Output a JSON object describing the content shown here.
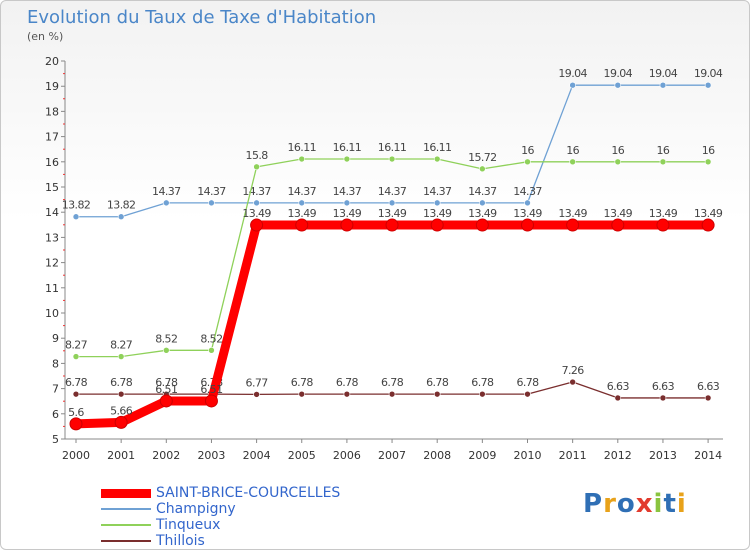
{
  "header": {
    "title": "Evolution du Taux de Taxe d'Habitation",
    "subtitle": "(en %)"
  },
  "logo": {
    "text": "Proxiti"
  },
  "chart_data": {
    "type": "line",
    "title": "Evolution du Taux de Taxe d'Habitation",
    "ylabel": "(en %)",
    "xlabel": "",
    "ylim": [
      5,
      20
    ],
    "yticks": [
      5,
      6,
      7,
      8,
      9,
      10,
      11,
      12,
      13,
      14,
      15,
      16,
      17,
      18,
      19,
      20
    ],
    "grid": false,
    "legend_position": "bottom-left",
    "categories": [
      "2000",
      "2001",
      "2002",
      "2003",
      "2004",
      "2005",
      "2006",
      "2007",
      "2008",
      "2009",
      "2010",
      "2011",
      "2012",
      "2013",
      "2014"
    ],
    "series": [
      {
        "name": "SAINT-BRICE-COURCELLES",
        "color": "#ff0000",
        "values": [
          5.6,
          5.66,
          6.51,
          6.51,
          13.49,
          13.49,
          13.49,
          13.49,
          13.49,
          13.49,
          13.49,
          13.49,
          13.49,
          13.49,
          13.49
        ],
        "labels": [
          "5.6",
          "5.66",
          "6.51",
          "6.51",
          "13.49",
          "13.49",
          "13.49",
          "13.49",
          "13.49",
          "13.49",
          "13.49",
          "13.49",
          "13.49",
          "13.49",
          "13.49"
        ]
      },
      {
        "name": "Champigny",
        "color": "#6fa1d4",
        "values": [
          13.82,
          13.82,
          14.37,
          14.37,
          14.37,
          14.37,
          14.37,
          14.37,
          14.37,
          14.37,
          14.37,
          19.04,
          19.04,
          19.04,
          19.04
        ],
        "labels": [
          "13.82",
          "13.82",
          "14.37",
          "14.37",
          "14.37",
          "14.37",
          "14.37",
          "14.37",
          "14.37",
          "14.37",
          "14.37",
          "19.04",
          "19.04",
          "19.04",
          "19.04"
        ]
      },
      {
        "name": "Tinqueux",
        "color": "#8fd15a",
        "values": [
          8.27,
          8.27,
          8.52,
          8.52,
          15.8,
          16.11,
          16.11,
          16.11,
          16.11,
          15.72,
          16,
          16,
          16,
          16,
          16
        ],
        "labels": [
          "8.27",
          "8.27",
          "8.52",
          "8.52",
          "15.8",
          "16.11",
          "16.11",
          "16.11",
          "16.11",
          "15.72",
          "16",
          "16",
          "16",
          "16",
          "16"
        ]
      },
      {
        "name": "Thillois",
        "color": "#7a2e2e",
        "values": [
          6.78,
          6.78,
          6.78,
          6.78,
          6.77,
          6.78,
          6.78,
          6.78,
          6.78,
          6.78,
          6.78,
          7.26,
          6.63,
          6.63,
          6.63
        ],
        "labels": [
          "6.78",
          "6.78",
          "6.78",
          "6.78",
          "6.77",
          "6.78",
          "6.78",
          "6.78",
          "6.78",
          "6.78",
          "6.78",
          "7.26",
          "6.63",
          "6.63",
          "6.63"
        ]
      }
    ]
  }
}
